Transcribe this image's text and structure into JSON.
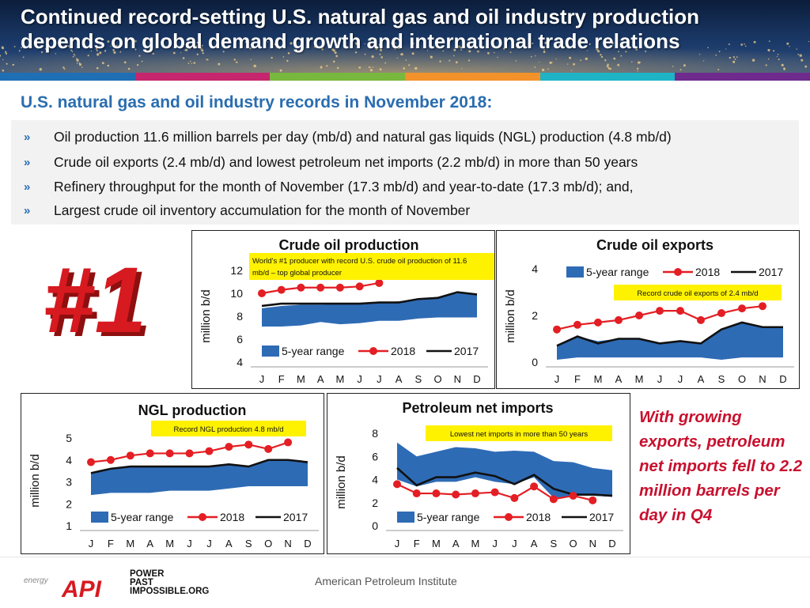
{
  "header": {
    "title_line1": "Continued record-setting U.S. natural gas and oil industry production",
    "title_line2": "depends on global demand growth and international trade relations"
  },
  "colors": {
    "accent_blue": "#2a6db0",
    "range_fill": "#2e6bb5",
    "series_2018": "#e31e24",
    "series_2017": "#111111",
    "callout": "#fff200",
    "note_red": "#c8102e",
    "strip": [
      "#1f6fb5",
      "#c6266e",
      "#78b83e",
      "#f3922a",
      "#1fb3c6",
      "#6f2a8e"
    ]
  },
  "subtitle": "U.S. natural gas and oil industry records in November 2018:",
  "bullets": [
    "Oil production 11.6 million barrels per day (mb/d) and natural gas liquids (NGL) production (4.8 mb/d)",
    "Crude oil exports (2.4 mb/d) and lowest petroleum net imports (2.2 mb/d) in more than 50 years",
    "Refinery throughput for the month of November (17.3 mb/d) and year-to-date (17.3 mb/d); and,",
    "Largest crude oil inventory accumulation for the month of November"
  ],
  "badge": {
    "text": "#1"
  },
  "side_note": "With growing exports, petroleum net imports fell to 2.2 million barrels per day in Q4",
  "footer": {
    "logo_text": "API",
    "logo_prefix": "energy",
    "tag_lines": [
      "POWER",
      "PAST",
      "IMPOSSIBLE.ORG"
    ],
    "org": "American Petroleum Institute"
  },
  "chart_data": [
    {
      "id": "crude",
      "type": "line",
      "title": "Crude oil production",
      "ylabel": "million b/d",
      "categories": [
        "J",
        "F",
        "M",
        "A",
        "M",
        "J",
        "J",
        "A",
        "S",
        "O",
        "N",
        "D"
      ],
      "ylim": [
        4,
        12
      ],
      "yticks": [
        4,
        6,
        8,
        10,
        12
      ],
      "range_label": "5-year range",
      "range_low": [
        7.1,
        7.1,
        7.2,
        7.5,
        7.3,
        7.4,
        7.6,
        7.6,
        7.8,
        7.9,
        7.9,
        7.9
      ],
      "range_high": [
        8.7,
        8.9,
        9.0,
        9.0,
        9.1,
        9.1,
        9.2,
        9.3,
        9.5,
        9.7,
        10.0,
        10.0
      ],
      "series": [
        {
          "name": "2018",
          "values": [
            10.0,
            10.3,
            10.5,
            10.5,
            10.5,
            10.6,
            10.9,
            null,
            null,
            null,
            null,
            null
          ]
        },
        {
          "name": "2017",
          "values": [
            8.9,
            9.1,
            9.1,
            9.1,
            9.1,
            9.1,
            9.2,
            9.2,
            9.5,
            9.6,
            10.1,
            9.9
          ]
        }
      ],
      "annotation": "World's #1 producer with record U.S. crude oil production of 11.6 mb/d – top global producer"
    },
    {
      "id": "exports",
      "type": "line",
      "title": "Crude oil exports",
      "ylabel": "million b/d",
      "categories": [
        "J",
        "F",
        "M",
        "A",
        "M",
        "J",
        "J",
        "A",
        "S",
        "O",
        "N",
        "D"
      ],
      "ylim": [
        0,
        4
      ],
      "yticks": [
        0,
        2,
        4
      ],
      "range_label": "5-year range",
      "range_low": [
        0.1,
        0.2,
        0.2,
        0.2,
        0.2,
        0.2,
        0.2,
        0.2,
        0.1,
        0.2,
        0.2,
        0.2
      ],
      "range_high": [
        0.7,
        1.1,
        0.9,
        1.0,
        1.0,
        0.8,
        0.9,
        0.8,
        1.4,
        1.7,
        1.5,
        1.5
      ],
      "series": [
        {
          "name": "2018",
          "values": [
            1.4,
            1.6,
            1.7,
            1.8,
            2.0,
            2.2,
            2.2,
            1.8,
            2.1,
            2.3,
            2.4,
            null
          ]
        },
        {
          "name": "2017",
          "values": [
            0.7,
            1.1,
            0.8,
            1.0,
            1.0,
            0.8,
            0.9,
            0.8,
            1.4,
            1.7,
            1.5,
            1.5
          ]
        }
      ],
      "annotation": "Record crude oil exports of 2.4 mb/d"
    },
    {
      "id": "ngl",
      "type": "line",
      "title": "NGL production",
      "ylabel": "million b/d",
      "categories": [
        "J",
        "F",
        "M",
        "A",
        "M",
        "J",
        "J",
        "A",
        "S",
        "O",
        "N",
        "D"
      ],
      "ylim": [
        1,
        5
      ],
      "yticks": [
        1,
        2,
        3,
        4,
        5
      ],
      "range_label": "5-year range",
      "range_low": [
        2.4,
        2.5,
        2.5,
        2.5,
        2.6,
        2.6,
        2.6,
        2.7,
        2.8,
        2.8,
        2.8,
        2.8
      ],
      "range_high": [
        3.4,
        3.6,
        3.7,
        3.7,
        3.7,
        3.7,
        3.7,
        3.8,
        3.7,
        4.0,
        4.0,
        3.9
      ],
      "series": [
        {
          "name": "2018",
          "values": [
            3.9,
            4.0,
            4.2,
            4.3,
            4.3,
            4.3,
            4.4,
            4.6,
            4.7,
            4.5,
            4.8,
            null
          ]
        },
        {
          "name": "2017",
          "values": [
            3.4,
            3.6,
            3.7,
            3.7,
            3.7,
            3.7,
            3.7,
            3.8,
            3.7,
            4.0,
            4.0,
            3.9
          ]
        }
      ],
      "annotation": "Record NGL production 4.8 mb/d"
    },
    {
      "id": "imports",
      "type": "line",
      "title": "Petroleum net imports",
      "ylabel": "million b/d",
      "categories": [
        "J",
        "F",
        "M",
        "A",
        "M",
        "J",
        "J",
        "A",
        "S",
        "O",
        "N",
        "D"
      ],
      "ylim": [
        0,
        8
      ],
      "yticks": [
        0,
        2,
        4,
        6,
        8
      ],
      "range_label": "5-year range",
      "range_low": [
        4.0,
        3.4,
        3.8,
        3.8,
        4.2,
        3.8,
        3.6,
        4.2,
        2.4,
        2.6,
        2.6,
        2.5
      ],
      "range_high": [
        7.2,
        6.0,
        6.4,
        6.8,
        6.7,
        6.4,
        6.5,
        6.4,
        5.6,
        5.5,
        5.0,
        4.8
      ],
      "series": [
        {
          "name": "2018",
          "values": [
            3.6,
            2.8,
            2.8,
            2.7,
            2.8,
            2.9,
            2.4,
            3.4,
            2.3,
            2.6,
            2.2,
            null
          ]
        },
        {
          "name": "2017",
          "values": [
            5.0,
            3.5,
            4.2,
            4.2,
            4.6,
            4.3,
            3.6,
            4.4,
            3.2,
            2.7,
            2.7,
            2.6
          ]
        }
      ],
      "annotation": "Lowest net imports in more than 50 years"
    }
  ]
}
